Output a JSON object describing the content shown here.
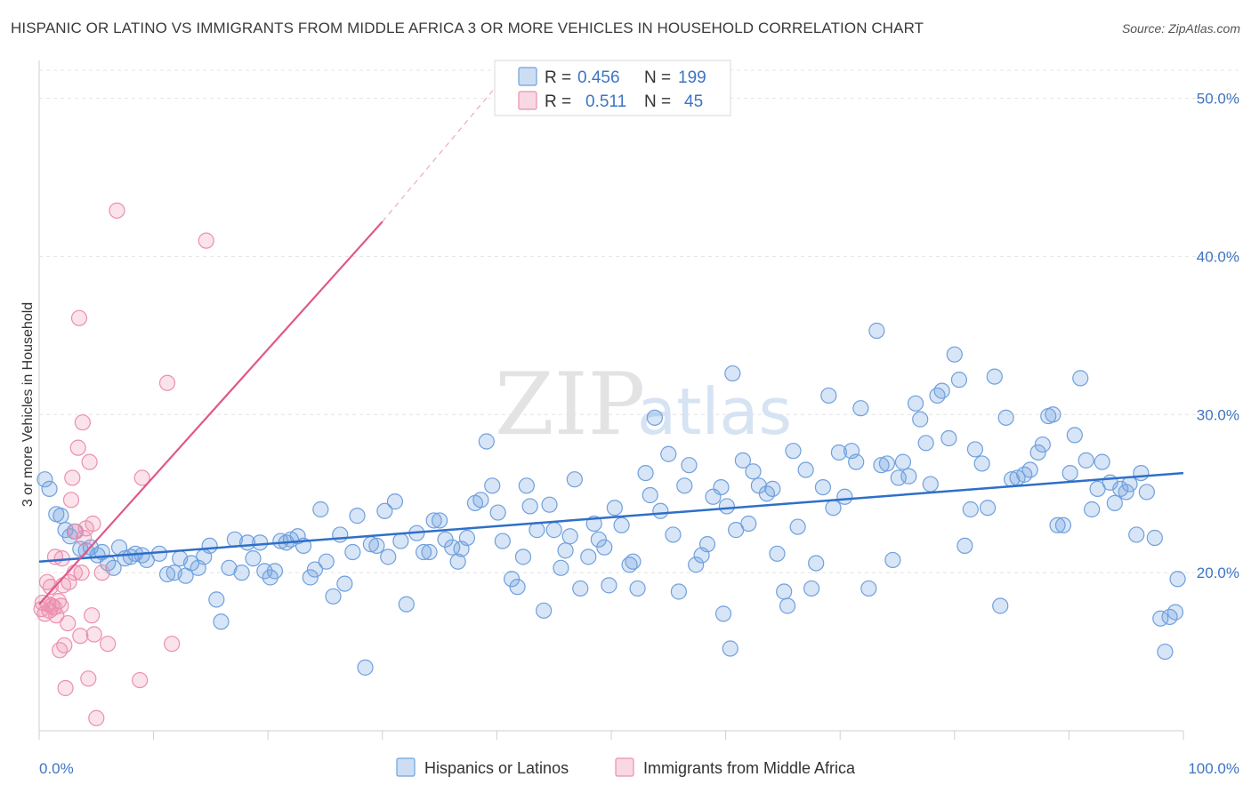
{
  "title": "HISPANIC OR LATINO VS IMMIGRANTS FROM MIDDLE AFRICA 3 OR MORE VEHICLES IN HOUSEHOLD CORRELATION CHART",
  "source": "Source: ZipAtlas.com",
  "watermark": {
    "zip": "ZIP",
    "atlas": "atlas"
  },
  "colors": {
    "blue": "#6fa0de",
    "blue_fill": "rgba(111,160,222,0.28)",
    "blue_line": "#2f6fc9",
    "pink": "#ec8fae",
    "pink_fill": "rgba(236,143,174,0.25)",
    "pink_line": "#e0588a",
    "tick_text": "#3d74c4"
  },
  "stats": [
    {
      "r_label": "R =",
      "r_value": "0.456",
      "n_label": "N =",
      "n_value": "199"
    },
    {
      "r_label": "R =",
      "r_value": "0.511",
      "n_label": "N =",
      "n_value": "45"
    }
  ],
  "chart_data": {
    "type": "scatter",
    "title": "HISPANIC OR LATINO VS IMMIGRANTS FROM MIDDLE AFRICA 3 OR MORE VEHICLES IN HOUSEHOLD CORRELATION CHART",
    "xlabel": "",
    "ylabel": "3 or more Vehicles in Household",
    "xlim": [
      0,
      100
    ],
    "ylim": [
      10,
      52
    ],
    "x_tick_labels": [
      "0.0%",
      "100.0%"
    ],
    "y_ticks": [
      20,
      30,
      40,
      50
    ],
    "y_tick_labels": [
      "20.0%",
      "30.0%",
      "40.0%",
      "50.0%"
    ],
    "grid": true,
    "legend_position": "bottom",
    "series": [
      {
        "name": "Hispanics or Latinos",
        "color": "#6fa0de",
        "trend": {
          "x": [
            0,
            100
          ],
          "y": [
            20.7,
            26.3
          ]
        },
        "points": [
          [
            0.5,
            25.9
          ],
          [
            0.9,
            25.3
          ],
          [
            1.5,
            23.7
          ],
          [
            1.9,
            23.6
          ],
          [
            2.3,
            22.7
          ],
          [
            2.7,
            22.3
          ],
          [
            3.1,
            22.6
          ],
          [
            3.6,
            21.5
          ],
          [
            4.1,
            21.4
          ],
          [
            4.5,
            21.6
          ],
          [
            5.1,
            21.1
          ],
          [
            5.5,
            21.3
          ],
          [
            6.0,
            20.6
          ],
          [
            6.5,
            20.3
          ],
          [
            7.0,
            21.6
          ],
          [
            7.5,
            20.9
          ],
          [
            8.0,
            21.0
          ],
          [
            8.4,
            21.2
          ],
          [
            9.0,
            21.1
          ],
          [
            9.4,
            20.8
          ],
          [
            10.5,
            21.2
          ],
          [
            11.2,
            19.9
          ],
          [
            11.8,
            20.0
          ],
          [
            12.3,
            20.9
          ],
          [
            12.8,
            19.8
          ],
          [
            13.3,
            20.6
          ],
          [
            13.9,
            20.3
          ],
          [
            14.4,
            21.0
          ],
          [
            14.9,
            21.7
          ],
          [
            15.5,
            18.3
          ],
          [
            15.9,
            16.9
          ],
          [
            16.6,
            20.3
          ],
          [
            17.1,
            22.1
          ],
          [
            17.7,
            20.0
          ],
          [
            18.2,
            21.9
          ],
          [
            18.7,
            20.9
          ],
          [
            19.3,
            21.9
          ],
          [
            19.7,
            20.1
          ],
          [
            20.2,
            19.7
          ],
          [
            20.6,
            20.1
          ],
          [
            21.1,
            22.0
          ],
          [
            21.6,
            21.9
          ],
          [
            22.0,
            22.1
          ],
          [
            22.6,
            22.3
          ],
          [
            23.1,
            21.7
          ],
          [
            23.7,
            19.7
          ],
          [
            24.1,
            20.2
          ],
          [
            24.6,
            24.0
          ],
          [
            25.1,
            20.7
          ],
          [
            25.7,
            18.5
          ],
          [
            26.3,
            22.4
          ],
          [
            26.7,
            19.3
          ],
          [
            27.4,
            21.3
          ],
          [
            27.8,
            23.6
          ],
          [
            28.5,
            14.0
          ],
          [
            29.0,
            21.8
          ],
          [
            29.5,
            21.7
          ],
          [
            30.2,
            23.9
          ],
          [
            30.5,
            21.0
          ],
          [
            31.1,
            24.5
          ],
          [
            31.6,
            22.0
          ],
          [
            32.1,
            18.0
          ],
          [
            33.0,
            22.5
          ],
          [
            33.6,
            21.3
          ],
          [
            34.1,
            21.3
          ],
          [
            34.5,
            23.3
          ],
          [
            35.0,
            23.3
          ],
          [
            35.5,
            22.1
          ],
          [
            36.1,
            21.6
          ],
          [
            36.6,
            20.7
          ],
          [
            36.9,
            21.5
          ],
          [
            37.4,
            22.2
          ],
          [
            38.1,
            24.4
          ],
          [
            38.6,
            24.6
          ],
          [
            39.1,
            28.3
          ],
          [
            39.6,
            25.5
          ],
          [
            40.1,
            23.8
          ],
          [
            40.5,
            22.0
          ],
          [
            41.3,
            19.6
          ],
          [
            41.8,
            19.1
          ],
          [
            42.3,
            21.0
          ],
          [
            42.6,
            25.5
          ],
          [
            42.9,
            24.2
          ],
          [
            43.5,
            22.7
          ],
          [
            44.1,
            17.6
          ],
          [
            44.6,
            24.3
          ],
          [
            45.0,
            22.7
          ],
          [
            45.6,
            20.3
          ],
          [
            46.0,
            21.4
          ],
          [
            46.4,
            22.3
          ],
          [
            46.8,
            25.9
          ],
          [
            47.3,
            19.0
          ],
          [
            48.0,
            21.0
          ],
          [
            48.5,
            23.1
          ],
          [
            48.9,
            22.1
          ],
          [
            49.4,
            21.6
          ],
          [
            49.8,
            19.2
          ],
          [
            50.3,
            24.1
          ],
          [
            50.9,
            23.0
          ],
          [
            51.6,
            20.5
          ],
          [
            51.9,
            20.7
          ],
          [
            52.3,
            19.0
          ],
          [
            53.0,
            26.3
          ],
          [
            53.4,
            24.9
          ],
          [
            53.8,
            29.8
          ],
          [
            54.3,
            23.9
          ],
          [
            55.0,
            27.5
          ],
          [
            55.4,
            22.4
          ],
          [
            55.9,
            18.8
          ],
          [
            56.4,
            25.5
          ],
          [
            56.8,
            26.8
          ],
          [
            57.4,
            20.5
          ],
          [
            57.9,
            21.1
          ],
          [
            58.4,
            21.8
          ],
          [
            58.9,
            24.8
          ],
          [
            59.6,
            25.4
          ],
          [
            60.1,
            24.2
          ],
          [
            60.6,
            32.6
          ],
          [
            60.9,
            22.7
          ],
          [
            61.5,
            27.1
          ],
          [
            62.0,
            23.1
          ],
          [
            62.4,
            26.4
          ],
          [
            62.9,
            25.5
          ],
          [
            63.6,
            25.0
          ],
          [
            64.1,
            25.3
          ],
          [
            64.5,
            21.2
          ],
          [
            65.1,
            18.8
          ],
          [
            65.4,
            17.9
          ],
          [
            65.9,
            27.7
          ],
          [
            66.3,
            22.9
          ],
          [
            67.0,
            26.5
          ],
          [
            67.5,
            19.0
          ],
          [
            67.9,
            20.6
          ],
          [
            68.5,
            25.4
          ],
          [
            69.0,
            31.2
          ],
          [
            69.4,
            24.1
          ],
          [
            69.9,
            27.6
          ],
          [
            70.4,
            24.8
          ],
          [
            71.0,
            27.7
          ],
          [
            71.4,
            27.0
          ],
          [
            71.8,
            30.4
          ],
          [
            72.5,
            19.0
          ],
          [
            73.2,
            35.3
          ],
          [
            73.6,
            26.8
          ],
          [
            74.1,
            26.9
          ],
          [
            74.6,
            20.8
          ],
          [
            75.1,
            26.0
          ],
          [
            75.5,
            27.0
          ],
          [
            76.0,
            26.1
          ],
          [
            76.6,
            30.7
          ],
          [
            77.0,
            29.7
          ],
          [
            77.5,
            28.2
          ],
          [
            77.9,
            25.6
          ],
          [
            78.5,
            31.2
          ],
          [
            78.9,
            31.5
          ],
          [
            79.5,
            28.5
          ],
          [
            80.0,
            33.8
          ],
          [
            80.4,
            32.2
          ],
          [
            80.9,
            21.7
          ],
          [
            81.4,
            24.0
          ],
          [
            81.8,
            27.8
          ],
          [
            82.4,
            26.9
          ],
          [
            82.9,
            24.1
          ],
          [
            83.5,
            32.4
          ],
          [
            84.0,
            17.9
          ],
          [
            84.5,
            29.8
          ],
          [
            85.0,
            25.9
          ],
          [
            85.5,
            26.0
          ],
          [
            86.1,
            26.2
          ],
          [
            86.6,
            26.5
          ],
          [
            87.3,
            27.6
          ],
          [
            87.7,
            28.1
          ],
          [
            88.2,
            29.9
          ],
          [
            88.6,
            30.0
          ],
          [
            89.0,
            23.0
          ],
          [
            89.5,
            23.0
          ],
          [
            90.1,
            26.3
          ],
          [
            90.5,
            28.7
          ],
          [
            91.0,
            32.3
          ],
          [
            91.5,
            27.1
          ],
          [
            92.0,
            24.0
          ],
          [
            92.5,
            25.3
          ],
          [
            92.9,
            27.0
          ],
          [
            93.6,
            25.7
          ],
          [
            94.0,
            24.4
          ],
          [
            94.5,
            25.3
          ],
          [
            95.0,
            25.1
          ],
          [
            95.3,
            25.6
          ],
          [
            95.9,
            22.4
          ],
          [
            96.3,
            26.3
          ],
          [
            96.8,
            25.1
          ],
          [
            97.5,
            22.2
          ],
          [
            98.0,
            17.1
          ],
          [
            98.4,
            15.0
          ],
          [
            98.8,
            17.2
          ],
          [
            99.3,
            17.5
          ],
          [
            99.5,
            19.6
          ],
          [
            59.8,
            17.4
          ],
          [
            60.4,
            15.2
          ]
        ]
      },
      {
        "name": "Immigrants from Middle Africa",
        "color": "#ec8fae",
        "trend": {
          "x": [
            0,
            30
          ],
          "y": [
            18.0,
            42.2
          ]
        },
        "trend_dashed": {
          "x": [
            30,
            40
          ],
          "y": [
            42.2,
            50.8
          ]
        },
        "points": [
          [
            0.2,
            17.7
          ],
          [
            0.3,
            18.1
          ],
          [
            0.5,
            17.4
          ],
          [
            0.7,
            19.4
          ],
          [
            0.8,
            18.0
          ],
          [
            0.9,
            17.6
          ],
          [
            1.0,
            19.1
          ],
          [
            1.1,
            17.9
          ],
          [
            1.3,
            17.8
          ],
          [
            1.4,
            21.0
          ],
          [
            1.5,
            17.3
          ],
          [
            1.7,
            18.2
          ],
          [
            1.8,
            15.1
          ],
          [
            1.9,
            17.9
          ],
          [
            2.0,
            20.9
          ],
          [
            2.1,
            19.2
          ],
          [
            2.2,
            15.4
          ],
          [
            2.3,
            12.7
          ],
          [
            2.5,
            16.8
          ],
          [
            2.6,
            19.4
          ],
          [
            2.8,
            24.6
          ],
          [
            2.9,
            26.0
          ],
          [
            3.1,
            20.0
          ],
          [
            3.2,
            22.6
          ],
          [
            3.4,
            27.9
          ],
          [
            3.5,
            36.1
          ],
          [
            3.6,
            16.0
          ],
          [
            3.7,
            20.0
          ],
          [
            3.8,
            29.5
          ],
          [
            3.9,
            22.2
          ],
          [
            4.1,
            22.8
          ],
          [
            4.3,
            13.3
          ],
          [
            4.4,
            27.0
          ],
          [
            4.6,
            17.3
          ],
          [
            4.7,
            23.1
          ],
          [
            4.8,
            16.1
          ],
          [
            5.0,
            10.8
          ],
          [
            5.5,
            20.0
          ],
          [
            6.0,
            15.5
          ],
          [
            6.8,
            42.9
          ],
          [
            8.8,
            13.2
          ],
          [
            9.0,
            26.0
          ],
          [
            11.2,
            32.0
          ],
          [
            11.6,
            15.5
          ],
          [
            14.6,
            41.0
          ]
        ]
      }
    ]
  },
  "legend": [
    {
      "label": "Hispanics or Latinos"
    },
    {
      "label": "Immigrants from Middle Africa"
    }
  ]
}
